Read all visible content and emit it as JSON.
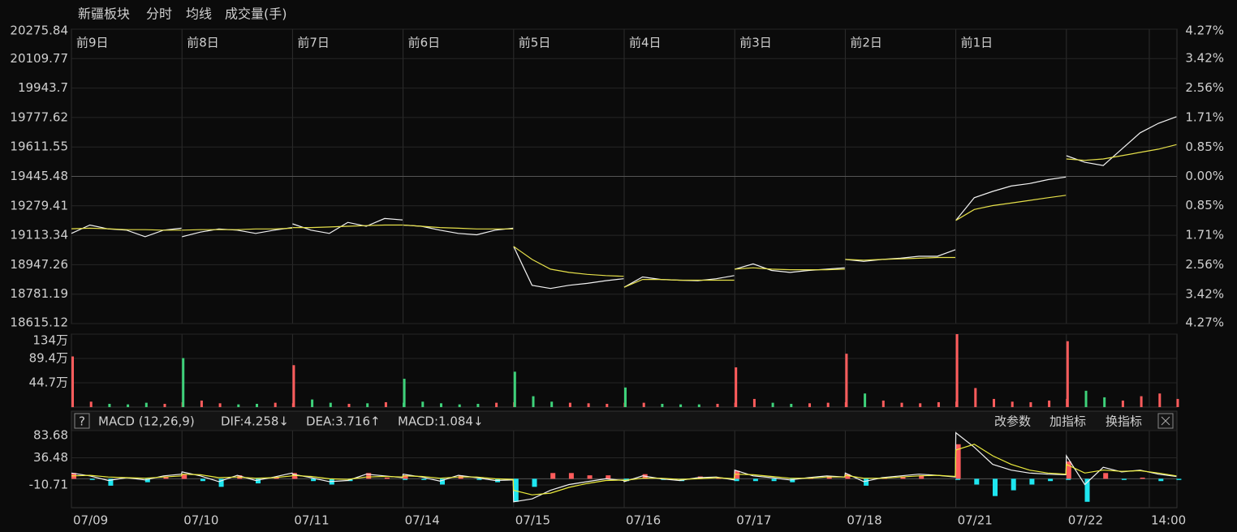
{
  "header": {
    "title": "新疆板块",
    "items": [
      "分时",
      "均线",
      "成交量(手)"
    ],
    "help": "?",
    "buttons": [
      "改参数",
      "加指标",
      "换指标"
    ]
  },
  "chart_data": [
    {
      "type": "line",
      "x": [
        0,
        40,
        80,
        120,
        160,
        200,
        239,
        240,
        280,
        320,
        360,
        400,
        440,
        479,
        480,
        520,
        560,
        600,
        640,
        680,
        719,
        720,
        760,
        800,
        840,
        880,
        920,
        959,
        960,
        1000,
        1040,
        1080,
        1120,
        1160,
        1199,
        1200,
        1240,
        1280,
        1320,
        1360,
        1400,
        1439,
        1440,
        1480,
        1520,
        1560,
        1600,
        1640,
        1679,
        1680,
        1720,
        1760,
        1800,
        1840,
        1880,
        1919,
        1920,
        1960,
        2000,
        2040,
        2080,
        2120,
        2159,
        2160,
        2200,
        2240,
        2280,
        2320,
        2360,
        2399
      ],
      "series": [
        {
          "color": "#f2f2f2",
          "values": [
            19124,
            19171,
            19149,
            19142,
            19105,
            19142,
            19153,
            19105,
            19131,
            19149,
            19142,
            19124,
            19142,
            19157,
            19178,
            19142,
            19124,
            19186,
            19164,
            19208,
            19200,
            19171,
            19164,
            19142,
            19124,
            19116,
            19142,
            19153,
            19050,
            18831,
            18813,
            18831,
            18842,
            18857,
            18868,
            18820,
            18878,
            18864,
            18860,
            18857,
            18868,
            18886,
            18922,
            18952,
            18915,
            18904,
            18915,
            18922,
            18930,
            18977,
            18966,
            18977,
            18984,
            18995,
            18995,
            19032,
            19197,
            19325,
            19361,
            19391,
            19405,
            19427,
            19442,
            19562,
            19525,
            19507,
            19599,
            19691,
            19745,
            19782
          ]
        },
        {
          "name": "均线",
          "color": "#e6e04a",
          "values": [
            19150,
            19153,
            19150,
            19145,
            19145,
            19142,
            19142,
            19142,
            19145,
            19145,
            19145,
            19149,
            19149,
            19153,
            19157,
            19157,
            19160,
            19164,
            19168,
            19171,
            19171,
            19171,
            19164,
            19157,
            19153,
            19149,
            19149,
            19149,
            19050,
            18977,
            18922,
            18904,
            18893,
            18886,
            18882,
            18820,
            18864,
            18864,
            18860,
            18860,
            18860,
            18860,
            18922,
            18930,
            18922,
            18919,
            18919,
            18919,
            18922,
            18977,
            18973,
            18977,
            18980,
            18984,
            18988,
            18988,
            19197,
            19259,
            19281,
            19295,
            19310,
            19325,
            19339,
            19544,
            19536,
            19544,
            19562,
            19581,
            19599,
            19625
          ]
        }
      ],
      "xlim": [
        0,
        2400
      ],
      "xticks": [
        {
          "value": 0,
          "label": "07/09"
        },
        {
          "value": 240,
          "label": "07/10"
        },
        {
          "value": 480,
          "label": "07/11"
        },
        {
          "value": 720,
          "label": "07/14"
        },
        {
          "value": 960,
          "label": "07/15"
        },
        {
          "value": 1200,
          "label": "07/16"
        },
        {
          "value": 1440,
          "label": "07/17"
        },
        {
          "value": 1680,
          "label": "07/18"
        },
        {
          "value": 1920,
          "label": "07/21"
        },
        {
          "value": 2160,
          "label": "07/22"
        },
        {
          "value": 2340,
          "label": "14:00"
        }
      ],
      "day_labels": [
        {
          "value": 0,
          "label": "前9日"
        },
        {
          "value": 240,
          "label": "前8日"
        },
        {
          "value": 480,
          "label": "前7日"
        },
        {
          "value": 720,
          "label": "前6日"
        },
        {
          "value": 960,
          "label": "前5日"
        },
        {
          "value": 1200,
          "label": "前4日"
        },
        {
          "value": 1440,
          "label": "前3日"
        },
        {
          "value": 1680,
          "label": "前2日"
        },
        {
          "value": 1920,
          "label": "前1日"
        }
      ],
      "ylim": [
        18615.12,
        20275.84
      ],
      "yticks": [
        20275.84,
        20109.77,
        19943.7,
        19777.62,
        19611.55,
        19445.48,
        19279.41,
        19113.34,
        18947.26,
        18781.19,
        18615.12
      ],
      "y2lim": [
        -4.27,
        4.27
      ],
      "y2ticks": [
        {
          "value": 4.27,
          "label": "4.27%"
        },
        {
          "value": 3.42,
          "label": "3.42%"
        },
        {
          "value": 2.56,
          "label": "2.56%"
        },
        {
          "value": 1.71,
          "label": "1.71%"
        },
        {
          "value": 0.85,
          "label": "0.85%"
        },
        {
          "value": 0,
          "label": "0.00%"
        },
        {
          "value": -0.85,
          "label": "0.85%"
        },
        {
          "value": -1.71,
          "label": "1.71%"
        },
        {
          "value": -2.56,
          "label": "2.56%"
        },
        {
          "value": -3.42,
          "label": "3.42%"
        },
        {
          "value": -4.27,
          "label": "4.27%"
        }
      ],
      "up_color": "#ff4b4b",
      "down_color": "#35d24a",
      "grid": true
    },
    {
      "type": "bar",
      "values": [
        93,
        10,
        6,
        5,
        8,
        6,
        9,
        90,
        12,
        7,
        5,
        6,
        8,
        7,
        77,
        14,
        8,
        6,
        7,
        9,
        8,
        52,
        10,
        7,
        5,
        6,
        8,
        9,
        65,
        20,
        10,
        8,
        7,
        6,
        8,
        36,
        8,
        6,
        5,
        5,
        6,
        8,
        73,
        15,
        8,
        6,
        7,
        8,
        9,
        98,
        25,
        12,
        8,
        7,
        9,
        10,
        134,
        35,
        15,
        10,
        9,
        12,
        15,
        121,
        30,
        18,
        12,
        20,
        25,
        15
      ],
      "ylim": [
        0,
        134
      ],
      "yticks": [
        {
          "value": 134,
          "label": "134万"
        },
        {
          "value": 89.4,
          "label": "89.4万"
        },
        {
          "value": 44.7,
          "label": "44.7万"
        }
      ],
      "up_color": "#ff5c5c",
      "down_color": "#3ed17a"
    },
    {
      "type": "macd",
      "title": "MACD (12,26,9)",
      "readouts": [
        "DIF:4.258↓",
        "DEA:3.716↑",
        "MACD:1.084↓"
      ],
      "series": [
        {
          "color": "#f2f2f2",
          "values": [
            10,
            5,
            -3,
            2,
            -2,
            5,
            8,
            12,
            5,
            -5,
            6,
            -3,
            3,
            10,
            8,
            2,
            -5,
            -3,
            8,
            5,
            2,
            8,
            3,
            -4,
            6,
            2,
            -3,
            -2,
            -40,
            -35,
            -20,
            -10,
            -5,
            0,
            -3,
            -5,
            5,
            0,
            -3,
            2,
            3,
            -2,
            15,
            5,
            2,
            -2,
            2,
            5,
            3,
            10,
            -5,
            2,
            5,
            8,
            6,
            3,
            80,
            55,
            25,
            15,
            10,
            8,
            7,
            40,
            -10,
            20,
            12,
            15,
            8,
            4
          ]
        },
        {
          "color": "#ecec3c",
          "values": [
            5,
            6,
            3,
            2,
            1,
            3,
            5,
            8,
            7,
            2,
            3,
            1,
            2,
            5,
            6,
            4,
            0,
            -1,
            3,
            4,
            3,
            5,
            4,
            1,
            3,
            3,
            0,
            -1,
            -20,
            -28,
            -25,
            -15,
            -8,
            -3,
            -2,
            -3,
            1,
            1,
            -1,
            0,
            2,
            0,
            8,
            7,
            4,
            1,
            1,
            3,
            3,
            6,
            1,
            1,
            3,
            5,
            6,
            4,
            50,
            60,
            40,
            25,
            15,
            10,
            8,
            25,
            10,
            15,
            13,
            14,
            10,
            5
          ]
        },
        {
          "color": "#ff5c5c",
          "neg_color": "#1ee6f0",
          "values": [
            10,
            -2,
            -12,
            0,
            -6,
            4,
            6,
            8,
            -4,
            -14,
            6,
            -8,
            2,
            10,
            4,
            -4,
            -10,
            -4,
            10,
            2,
            -2,
            6,
            -2,
            -10,
            6,
            -2,
            -6,
            -2,
            -40,
            -14,
            10,
            10,
            6,
            6,
            -2,
            -4,
            8,
            -2,
            -4,
            4,
            2,
            -4,
            14,
            -4,
            -4,
            -6,
            2,
            4,
            0,
            8,
            -12,
            2,
            4,
            6,
            0,
            -2,
            60,
            -10,
            -30,
            -20,
            -10,
            -4,
            -2,
            30,
            -40,
            10,
            -2,
            2,
            -4,
            -2
          ]
        }
      ],
      "ylim": [
        -50.2,
        83.68
      ],
      "yticks": [
        83.68,
        36.48,
        -10.71
      ]
    }
  ]
}
